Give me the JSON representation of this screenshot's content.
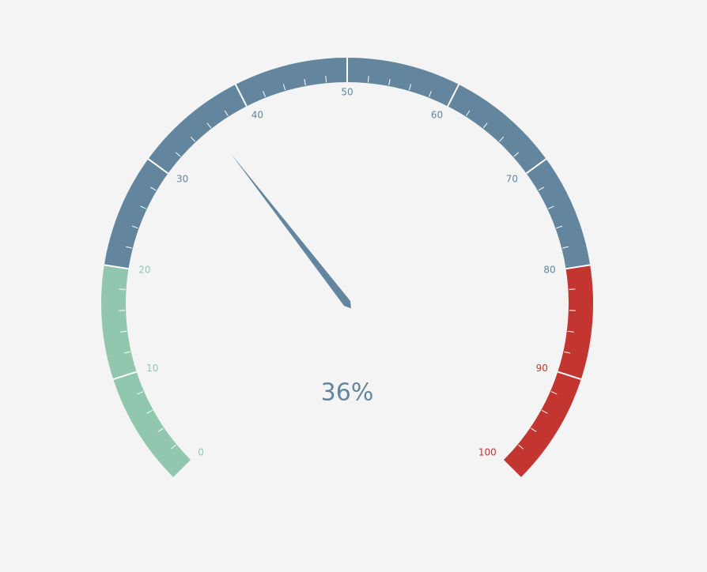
{
  "chart_data": {
    "type": "gauge",
    "min": 0,
    "max": 100,
    "value": 36,
    "start_angle_deg": 225,
    "end_angle_deg": -45,
    "detail_text": "36%",
    "tick_labels": [
      "0",
      "10",
      "20",
      "30",
      "40",
      "50",
      "60",
      "70",
      "80",
      "90",
      "100"
    ],
    "split_number": 10,
    "minor_ticks_per_split": 5,
    "bands": [
      {
        "from": 0,
        "to": 20,
        "color": "#91c7ae"
      },
      {
        "from": 20,
        "to": 80,
        "color": "#63869e"
      },
      {
        "from": 80,
        "to": 100,
        "color": "#c23531"
      }
    ],
    "pointer_color": "#63869e",
    "detail_color": "#63869e"
  }
}
